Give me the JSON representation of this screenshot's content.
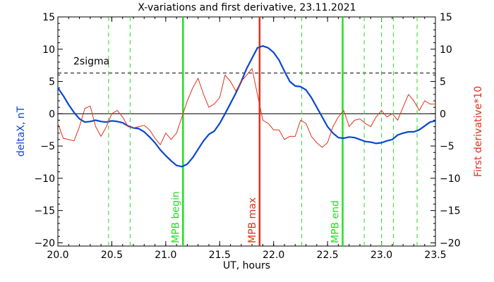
{
  "chart_data": {
    "type": "line",
    "title": "X-variations and first derivative, 23.11.2021",
    "xlabel": "UT, hours",
    "ylabel_left": "deltaX, nT",
    "ylabel_right": "First derivative*10",
    "xlim": [
      20.0,
      23.5
    ],
    "ylim": [
      -20.5,
      15
    ],
    "x_ticks": [
      "20.0",
      "20.5",
      "21.0",
      "21.5",
      "22.0",
      "22.5",
      "23.0",
      "23.5"
    ],
    "x_tick_values": [
      20.0,
      20.5,
      21.0,
      21.5,
      22.0,
      22.5,
      23.0,
      23.5
    ],
    "y_ticks": [
      "15",
      "10",
      "5",
      "0",
      "−5",
      "−10",
      "−15",
      "−20"
    ],
    "y_tick_values": [
      15,
      10,
      5,
      0,
      -5,
      -10,
      -15,
      -20
    ],
    "sigma_label": "2sigma",
    "sigma_level": 6.3,
    "colors": {
      "deltaX": "#0a46d2",
      "derivative": "#e0301a",
      "marker_green": "#22dd22",
      "marker_red": "#e0301a"
    },
    "series": [
      {
        "key": "deltaX",
        "x": [
          20.0,
          20.05,
          20.1,
          20.15,
          20.2,
          20.25,
          20.3,
          20.35,
          20.4,
          20.45,
          20.5,
          20.55,
          20.6,
          20.65,
          20.7,
          20.75,
          20.8,
          20.85,
          20.9,
          20.95,
          21.0,
          21.05,
          21.1,
          21.15,
          21.2,
          21.25,
          21.3,
          21.35,
          21.4,
          21.45,
          21.5,
          21.55,
          21.6,
          21.65,
          21.7,
          21.75,
          21.8,
          21.85,
          21.9,
          21.95,
          22.0,
          22.05,
          22.1,
          22.15,
          22.2,
          22.25,
          22.3,
          22.35,
          22.4,
          22.45,
          22.5,
          22.55,
          22.6,
          22.65,
          22.7,
          22.75,
          22.8,
          22.85,
          22.9,
          22.95,
          23.0,
          23.05,
          23.1,
          23.15,
          23.2,
          23.25,
          23.3,
          23.35,
          23.4,
          23.45,
          23.5
        ],
        "y": [
          4.0,
          2.8,
          1.4,
          0.2,
          -0.8,
          -1.3,
          -1.2,
          -1.0,
          -1.2,
          -1.3,
          -1.1,
          -1.2,
          -1.4,
          -1.9,
          -2.2,
          -2.3,
          -2.8,
          -3.6,
          -4.5,
          -5.6,
          -6.5,
          -7.3,
          -8.0,
          -8.2,
          -7.8,
          -6.8,
          -5.5,
          -4.2,
          -3.2,
          -2.7,
          -1.5,
          0.0,
          1.6,
          3.2,
          5.0,
          7.0,
          8.6,
          10.2,
          10.5,
          10.2,
          9.5,
          8.3,
          6.6,
          5.0,
          4.3,
          4.2,
          3.7,
          2.5,
          1.0,
          -0.5,
          -2.0,
          -3.0,
          -3.7,
          -3.8,
          -3.6,
          -3.7,
          -4.0,
          -4.3,
          -4.4,
          -4.6,
          -4.5,
          -4.2,
          -4.0,
          -3.3,
          -3.0,
          -2.8,
          -2.8,
          -2.5,
          -1.9,
          -1.3,
          -1.1
        ]
      },
      {
        "key": "derivative",
        "x": [
          20.0,
          20.05,
          20.1,
          20.15,
          20.2,
          20.25,
          20.3,
          20.35,
          20.4,
          20.45,
          20.5,
          20.55,
          20.6,
          20.65,
          20.7,
          20.75,
          20.8,
          20.85,
          20.9,
          20.95,
          21.0,
          21.05,
          21.1,
          21.15,
          21.2,
          21.25,
          21.3,
          21.35,
          21.4,
          21.45,
          21.5,
          21.55,
          21.6,
          21.65,
          21.7,
          21.75,
          21.8,
          21.85,
          21.9,
          21.95,
          22.0,
          22.05,
          22.1,
          22.15,
          22.2,
          22.25,
          22.3,
          22.35,
          22.4,
          22.45,
          22.5,
          22.55,
          22.6,
          22.65,
          22.7,
          22.75,
          22.8,
          22.85,
          22.9,
          22.95,
          23.0,
          23.05,
          23.1,
          23.15,
          23.2,
          23.25,
          23.3,
          23.35,
          23.4,
          23.45,
          23.5
        ],
        "y": [
          -1.5,
          -3.8,
          -4.0,
          -4.2,
          -2.0,
          0.8,
          1.2,
          -2.0,
          -3.5,
          -2.0,
          0.0,
          0.5,
          -0.5,
          -2.0,
          -2.2,
          -2.0,
          -1.8,
          -2.5,
          -3.8,
          -4.8,
          -3.0,
          -4.0,
          -3.0,
          -0.5,
          2.0,
          4.0,
          5.5,
          3.0,
          1.0,
          1.5,
          2.5,
          6.0,
          5.0,
          3.5,
          5.0,
          6.0,
          7.0,
          3.0,
          -1.0,
          -1.5,
          -2.5,
          -2.5,
          -4.0,
          -3.5,
          -3.5,
          -1.0,
          -1.5,
          -3.5,
          -4.5,
          -5.2,
          -4.5,
          -2.0,
          -0.5,
          0.5,
          -2.0,
          -1.0,
          -0.8,
          -1.5,
          -2.0,
          -0.5,
          0.5,
          -0.5,
          0.0,
          -1.0,
          1.0,
          3.0,
          2.0,
          0.5,
          2.0,
          1.5,
          1.5
        ]
      }
    ],
    "markers": [
      {
        "x": 20.47,
        "style": "dashed",
        "color": "green"
      },
      {
        "x": 20.67,
        "style": "dashed",
        "color": "green"
      },
      {
        "x": 21.16,
        "style": "solid",
        "color": "green",
        "label": "MPB begin"
      },
      {
        "x": 21.87,
        "style": "solid",
        "color": "red",
        "label": "MPB max"
      },
      {
        "x": 22.26,
        "style": "dashed",
        "color": "green"
      },
      {
        "x": 22.64,
        "style": "solid",
        "color": "green",
        "label": "MPB end"
      },
      {
        "x": 22.84,
        "style": "dashed",
        "color": "green"
      },
      {
        "x": 23.0,
        "style": "dashed",
        "color": "green"
      },
      {
        "x": 23.11,
        "style": "dashed",
        "color": "green"
      },
      {
        "x": 23.33,
        "style": "dashed",
        "color": "green"
      }
    ],
    "zero_line": true,
    "grid": false
  }
}
